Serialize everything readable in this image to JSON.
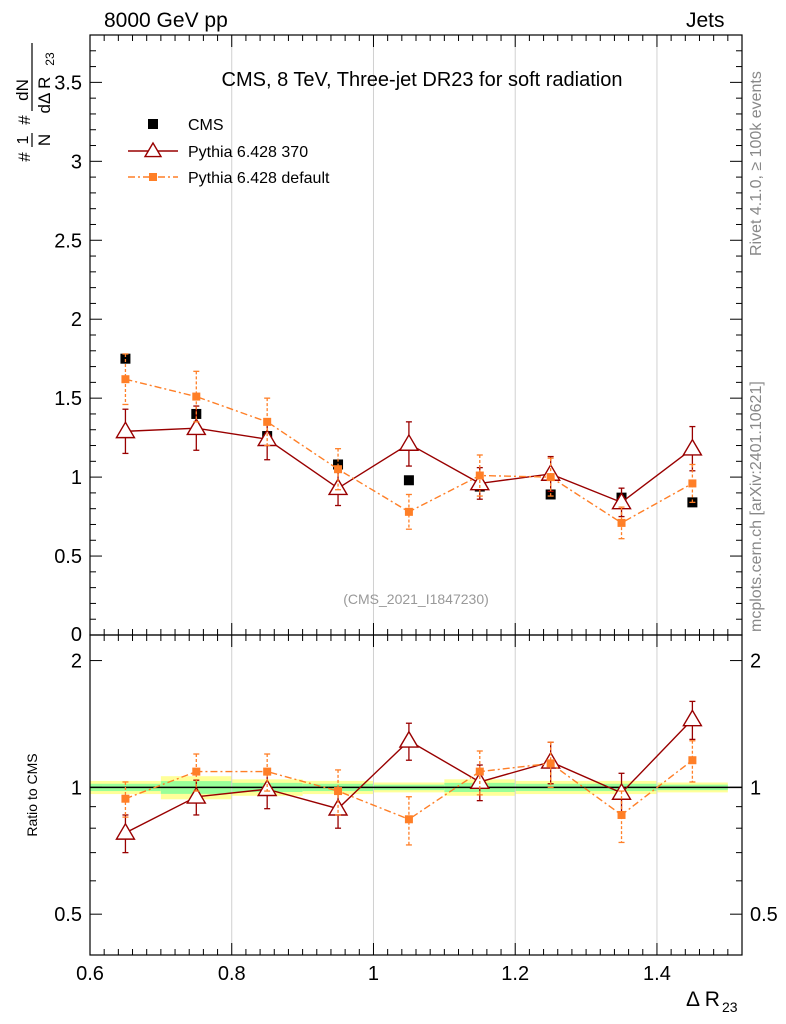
{
  "header": {
    "left": "8000 GeV pp",
    "right": "Jets"
  },
  "side": {
    "rivet": "Rivet 4.1.0, ≥ 100k events",
    "mcplots": "mcplots.cern.ch [arXiv:2401.10621]"
  },
  "chart_data": {
    "type": "scatter",
    "title": "CMS, 8 TeV, Three-jet DR23 for soft radiation",
    "watermark": "(CMS_2021_I1847230)",
    "xlabel": "Δ R23",
    "ylabel": "1/N dN/dΔ R23",
    "ratio_ylabel": "Ratio to CMS",
    "xlim": [
      0.6,
      1.52
    ],
    "ylim": [
      0,
      3.8
    ],
    "ratio_ylim": [
      0.4,
      2.3
    ],
    "x": [
      0.65,
      0.75,
      0.85,
      0.95,
      1.05,
      1.15,
      1.25,
      1.35,
      1.45
    ],
    "band_color": "#ffff99",
    "band_inner_color": "#99ff99",
    "series": [
      {
        "name": "CMS",
        "color": "#000000",
        "marker": "square",
        "values": [
          1.75,
          1.4,
          1.26,
          1.08,
          0.98,
          0.94,
          0.89,
          0.87,
          0.84
        ],
        "errors": [
          0.03,
          0.04,
          0.03,
          0.03,
          0.02,
          0.03,
          0.02,
          0.02,
          0.02
        ],
        "band_rel": [
          0.02,
          0.035,
          0.025,
          0.02,
          0.015,
          0.025,
          0.02,
          0.02,
          0.015
        ]
      },
      {
        "name": "Pythia 6.428 370",
        "color": "#990000",
        "marker": "triangle",
        "linestyle": "solid",
        "values": [
          1.29,
          1.31,
          1.24,
          0.93,
          1.21,
          0.96,
          1.02,
          0.84,
          1.18
        ],
        "errors": [
          0.14,
          0.14,
          0.13,
          0.11,
          0.14,
          0.1,
          0.11,
          0.09,
          0.14
        ],
        "ratio": [
          0.78,
          0.95,
          0.99,
          0.89,
          1.29,
          1.03,
          1.15,
          0.97,
          1.45
        ],
        "ratio_errors": [
          0.08,
          0.09,
          0.1,
          0.09,
          0.13,
          0.1,
          0.13,
          0.11,
          0.15
        ]
      },
      {
        "name": "Pythia 6.428 default",
        "color": "#ff7f27",
        "marker": "square",
        "linestyle": "dashdot",
        "values": [
          1.62,
          1.51,
          1.35,
          1.05,
          0.78,
          1.01,
          1.0,
          0.71,
          0.96
        ],
        "errors": [
          0.16,
          0.16,
          0.15,
          0.13,
          0.11,
          0.13,
          0.12,
          0.1,
          0.12
        ],
        "ratio": [
          0.94,
          1.09,
          1.09,
          0.98,
          0.84,
          1.09,
          1.14,
          0.86,
          1.16
        ],
        "ratio_errors": [
          0.09,
          0.11,
          0.11,
          0.12,
          0.11,
          0.13,
          0.14,
          0.12,
          0.13
        ]
      }
    ],
    "yticks": [
      0.5,
      1,
      1.5,
      2,
      2.5,
      3,
      3.5
    ],
    "ytick_labels": [
      "0.5",
      "1",
      "1.5",
      "2",
      "2.5",
      "3",
      "3.5"
    ],
    "ytick_zero_label": "0",
    "ratio_yticks": [
      0.5,
      1,
      2
    ],
    "ratio_ytick_labels": [
      "0.5",
      "1",
      "2"
    ],
    "xticks": [
      0.6,
      0.8,
      1.0,
      1.2,
      1.4
    ],
    "xtick_labels": [
      "0.6",
      "0.8",
      "1",
      "1.2",
      "1.4"
    ]
  }
}
